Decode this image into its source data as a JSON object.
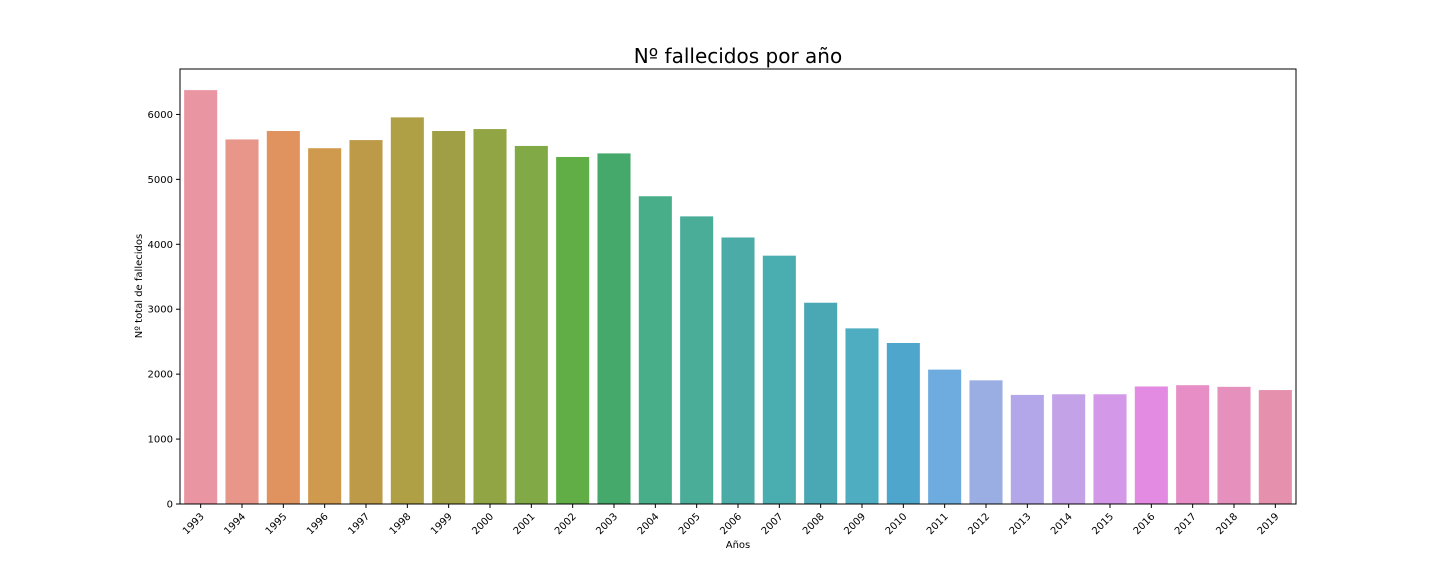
{
  "chart_data": {
    "type": "bar",
    "title": "Nº fallecidos por año",
    "xlabel": "Años",
    "ylabel": "Nº total de fallecidos",
    "ylim": [
      0,
      6700
    ],
    "yticks": [
      0,
      1000,
      2000,
      3000,
      4000,
      5000,
      6000
    ],
    "categories": [
      "1993",
      "1994",
      "1995",
      "1996",
      "1997",
      "1998",
      "1999",
      "2000",
      "2001",
      "2002",
      "2003",
      "2004",
      "2005",
      "2006",
      "2007",
      "2008",
      "2009",
      "2010",
      "2011",
      "2012",
      "2013",
      "2014",
      "2015",
      "2016",
      "2017",
      "2018",
      "2019"
    ],
    "values": [
      6375,
      5615,
      5745,
      5480,
      5605,
      5955,
      5745,
      5775,
      5515,
      5345,
      5400,
      4740,
      4430,
      4105,
      3825,
      3100,
      2705,
      2480,
      2070,
      1905,
      1680,
      1690,
      1690,
      1810,
      1830,
      1805,
      1755
    ],
    "colors": [
      "#ea96a2",
      "#e8968a",
      "#e1935f",
      "#cf9a4d",
      "#bc9a47",
      "#af9f45",
      "#a19f45",
      "#92a545",
      "#81a946",
      "#61ae47",
      "#45a96b",
      "#48ad89",
      "#4aad98",
      "#4baba6",
      "#4aaeb0",
      "#4aa7b4",
      "#4eadc1",
      "#4ea6cd",
      "#6eace0",
      "#9aaee4",
      "#b3a7ea",
      "#c3a2e8",
      "#d498e8",
      "#e38ae2",
      "#e78ec7",
      "#e590bd",
      "#e590ad"
    ],
    "grid": false,
    "legend": "none"
  }
}
